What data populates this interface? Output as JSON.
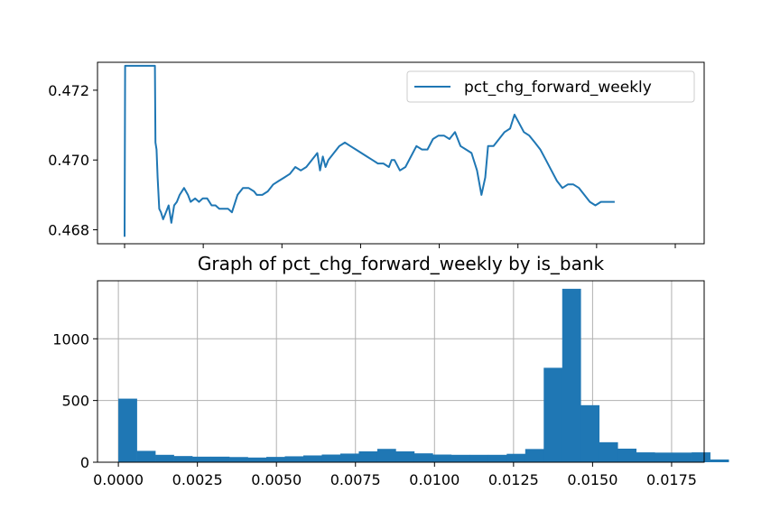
{
  "chart_data": [
    {
      "type": "line",
      "title": "",
      "xlabel": "",
      "ylabel": "",
      "ylim": [
        0.4676,
        0.4728
      ],
      "yticks": [
        0.468,
        0.47,
        0.472
      ],
      "ytick_labels": [
        "0.468",
        "0.470",
        "0.472"
      ],
      "xtick_count": 8,
      "grid": false,
      "legend_position": "top-right",
      "series": [
        {
          "name": "pct_chg_forward_weekly",
          "color": "#1f77b4",
          "x_index_range": [
            0,
            1000
          ],
          "points": [
            [
              0,
              0.4678
            ],
            [
              1,
              0.4727
            ],
            [
              55,
              0.4727
            ],
            [
              56,
              0.4705
            ],
            [
              58,
              0.4703
            ],
            [
              60,
              0.4695
            ],
            [
              63,
              0.4686
            ],
            [
              66,
              0.4685
            ],
            [
              70,
              0.4683
            ],
            [
              75,
              0.4685
            ],
            [
              80,
              0.4687
            ],
            [
              85,
              0.4682
            ],
            [
              90,
              0.4687
            ],
            [
              95,
              0.4688
            ],
            [
              100,
              0.469
            ],
            [
              108,
              0.4692
            ],
            [
              115,
              0.469
            ],
            [
              120,
              0.4688
            ],
            [
              128,
              0.4689
            ],
            [
              135,
              0.4688
            ],
            [
              142,
              0.4689
            ],
            [
              150,
              0.4689
            ],
            [
              158,
              0.4687
            ],
            [
              165,
              0.4687
            ],
            [
              172,
              0.4686
            ],
            [
              180,
              0.4686
            ],
            [
              188,
              0.4686
            ],
            [
              195,
              0.4685
            ],
            [
              205,
              0.469
            ],
            [
              215,
              0.4692
            ],
            [
              225,
              0.4692
            ],
            [
              235,
              0.4691
            ],
            [
              240,
              0.469
            ],
            [
              250,
              0.469
            ],
            [
              260,
              0.4691
            ],
            [
              270,
              0.4693
            ],
            [
              280,
              0.4694
            ],
            [
              290,
              0.4695
            ],
            [
              300,
              0.4696
            ],
            [
              310,
              0.4698
            ],
            [
              320,
              0.4697
            ],
            [
              330,
              0.4698
            ],
            [
              340,
              0.47
            ],
            [
              350,
              0.4702
            ],
            [
              355,
              0.4697
            ],
            [
              360,
              0.4701
            ],
            [
              365,
              0.4698
            ],
            [
              370,
              0.47
            ],
            [
              380,
              0.4702
            ],
            [
              390,
              0.4704
            ],
            [
              400,
              0.4705
            ],
            [
              410,
              0.4704
            ],
            [
              420,
              0.4703
            ],
            [
              430,
              0.4702
            ],
            [
              440,
              0.4701
            ],
            [
              450,
              0.47
            ],
            [
              460,
              0.4699
            ],
            [
              470,
              0.4699
            ],
            [
              480,
              0.4698
            ],
            [
              485,
              0.47
            ],
            [
              490,
              0.47
            ],
            [
              500,
              0.4697
            ],
            [
              510,
              0.4698
            ],
            [
              520,
              0.4701
            ],
            [
              530,
              0.4704
            ],
            [
              540,
              0.4703
            ],
            [
              550,
              0.4703
            ],
            [
              560,
              0.4706
            ],
            [
              570,
              0.4707
            ],
            [
              580,
              0.4707
            ],
            [
              590,
              0.4706
            ],
            [
              600,
              0.4708
            ],
            [
              610,
              0.4704
            ],
            [
              620,
              0.4703
            ],
            [
              630,
              0.4702
            ],
            [
              640,
              0.4697
            ],
            [
              648,
              0.469
            ],
            [
              655,
              0.4695
            ],
            [
              660,
              0.4704
            ],
            [
              670,
              0.4704
            ],
            [
              680,
              0.4706
            ],
            [
              690,
              0.4708
            ],
            [
              700,
              0.4709
            ],
            [
              708,
              0.4713
            ],
            [
              715,
              0.4711
            ],
            [
              725,
              0.4708
            ],
            [
              735,
              0.4707
            ],
            [
              745,
              0.4705
            ],
            [
              755,
              0.4703
            ],
            [
              765,
              0.47
            ],
            [
              775,
              0.4697
            ],
            [
              785,
              0.4694
            ],
            [
              795,
              0.4692
            ],
            [
              805,
              0.4693
            ],
            [
              815,
              0.4693
            ],
            [
              825,
              0.4692
            ],
            [
              835,
              0.469
            ],
            [
              845,
              0.4688
            ],
            [
              855,
              0.4687
            ],
            [
              865,
              0.4688
            ],
            [
              875,
              0.4688
            ],
            [
              885,
              0.4688
            ],
            [
              890,
              0.4688
            ]
          ]
        }
      ]
    },
    {
      "type": "bar",
      "title": "Graph of pct_chg_forward_weekly by is_bank",
      "xlabel": "",
      "ylabel": "",
      "xlim": [
        -0.00066,
        0.01853
      ],
      "ylim": [
        0,
        1470
      ],
      "xticks": [
        0.0,
        0.0025,
        0.005,
        0.0075,
        0.01,
        0.0125,
        0.015,
        0.0175
      ],
      "xtick_labels": [
        "0.0000",
        "0.0025",
        "0.0050",
        "0.0075",
        "0.0100",
        "0.0125",
        "0.0150",
        "0.0175"
      ],
      "yticks": [
        0,
        500,
        1000
      ],
      "ytick_labels": [
        "0",
        "500",
        "1000"
      ],
      "grid": true,
      "color": "#1f77b4",
      "bin_start": 0.0,
      "bin_width": 0.000585,
      "values": [
        515,
        92,
        60,
        50,
        45,
        45,
        42,
        38,
        43,
        48,
        55,
        62,
        70,
        88,
        108,
        88,
        72,
        62,
        60,
        60,
        60,
        68,
        107,
        765,
        1405,
        462,
        162,
        110,
        80,
        78,
        78,
        80,
        22
      ]
    }
  ]
}
